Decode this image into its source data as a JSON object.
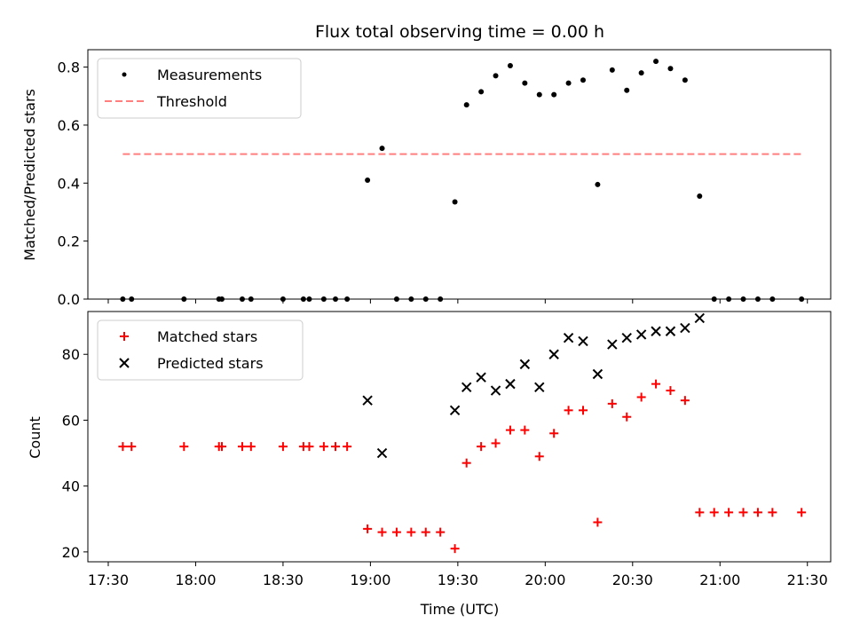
{
  "chart_data": [
    {
      "type": "scatter",
      "title": "Flux total observing time = 0.00 h",
      "xlabel": "",
      "ylabel": "Matched/Predicted stars",
      "xlim": [
        "17:23",
        "21:38"
      ],
      "ylim": [
        0,
        0.86
      ],
      "yticks": [
        0.0,
        0.2,
        0.4,
        0.6,
        0.8
      ],
      "ytick_labels": [
        "0.0",
        "0.2",
        "0.4",
        "0.6",
        "0.8"
      ],
      "legend": {
        "placement": "top-left",
        "entries": [
          "Measurements",
          "Threshold"
        ]
      },
      "series": [
        {
          "name": "Measurements",
          "marker": "dot",
          "color": "#000000",
          "x": [
            "17:35",
            "17:38",
            "17:56",
            "18:08",
            "18:09",
            "18:16",
            "18:19",
            "18:30",
            "18:37",
            "18:39",
            "18:44",
            "18:48",
            "18:52",
            "18:59",
            "19:04",
            "19:09",
            "19:14",
            "19:19",
            "19:24",
            "19:29",
            "19:33",
            "19:38",
            "19:43",
            "19:48",
            "19:53",
            "19:58",
            "20:03",
            "20:08",
            "20:13",
            "20:18",
            "20:23",
            "20:28",
            "20:33",
            "20:38",
            "20:43",
            "20:48",
            "20:53",
            "20:58",
            "21:03",
            "21:08",
            "21:13",
            "21:18",
            "21:28"
          ],
          "y": [
            0,
            0,
            0,
            0,
            0,
            0,
            0,
            0,
            0,
            0,
            0,
            0,
            0,
            0.41,
            0.52,
            0,
            0,
            0,
            0,
            0.335,
            0.67,
            0.715,
            0.77,
            0.805,
            0.745,
            0.705,
            0.705,
            0.745,
            0.755,
            0.395,
            0.79,
            0.72,
            0.78,
            0.82,
            0.795,
            0.755,
            0.355,
            0,
            0,
            0,
            0,
            0,
            0
          ]
        },
        {
          "name": "Threshold",
          "style": "dashed",
          "color": "#ff7f7f",
          "x": [
            "17:35",
            "21:28"
          ],
          "y": [
            0.5,
            0.5
          ]
        }
      ]
    },
    {
      "type": "scatter",
      "title": "",
      "xlabel": "Time (UTC)",
      "ylabel": "Count",
      "xlim": [
        "17:23",
        "21:38"
      ],
      "xticks": [
        "17:30",
        "18:00",
        "18:30",
        "19:00",
        "19:30",
        "20:00",
        "20:30",
        "21:00",
        "21:30"
      ],
      "ylim": [
        17,
        93
      ],
      "yticks": [
        20,
        40,
        60,
        80
      ],
      "ytick_labels": [
        "20",
        "40",
        "60",
        "80"
      ],
      "legend": {
        "placement": "top-left",
        "entries": [
          "Matched stars",
          "Predicted stars"
        ]
      },
      "series": [
        {
          "name": "Matched stars",
          "marker": "plus",
          "color": "#ff0000",
          "x": [
            "17:35",
            "17:38",
            "17:56",
            "18:08",
            "18:09",
            "18:16",
            "18:19",
            "18:30",
            "18:37",
            "18:39",
            "18:44",
            "18:48",
            "18:52",
            "18:59",
            "19:04",
            "19:09",
            "19:14",
            "19:19",
            "19:24",
            "19:29",
            "19:33",
            "19:38",
            "19:43",
            "19:48",
            "19:53",
            "19:58",
            "20:03",
            "20:08",
            "20:13",
            "20:18",
            "20:23",
            "20:28",
            "20:33",
            "20:38",
            "20:43",
            "20:48",
            "20:53",
            "20:58",
            "21:03",
            "21:08",
            "21:13",
            "21:18",
            "21:28"
          ],
          "y": [
            52,
            52,
            52,
            52,
            52,
            52,
            52,
            52,
            52,
            52,
            52,
            52,
            52,
            27,
            26,
            26,
            26,
            26,
            26,
            21,
            47,
            52,
            53,
            57,
            57,
            49,
            56,
            63,
            63,
            29,
            65,
            61,
            67,
            71,
            69,
            66,
            32,
            32,
            32,
            32,
            32,
            32,
            32
          ]
        },
        {
          "name": "Predicted stars",
          "marker": "x",
          "color": "#000000",
          "x": [
            "18:59",
            "19:04",
            "19:29",
            "19:33",
            "19:38",
            "19:43",
            "19:48",
            "19:53",
            "19:58",
            "20:03",
            "20:08",
            "20:13",
            "20:18",
            "20:23",
            "20:28",
            "20:33",
            "20:38",
            "20:43",
            "20:48",
            "20:53"
          ],
          "y": [
            66,
            50,
            63,
            70,
            73,
            69,
            71,
            77,
            70,
            80,
            85,
            84,
            74,
            83,
            85,
            86,
            87,
            87,
            88,
            91
          ]
        }
      ]
    }
  ]
}
